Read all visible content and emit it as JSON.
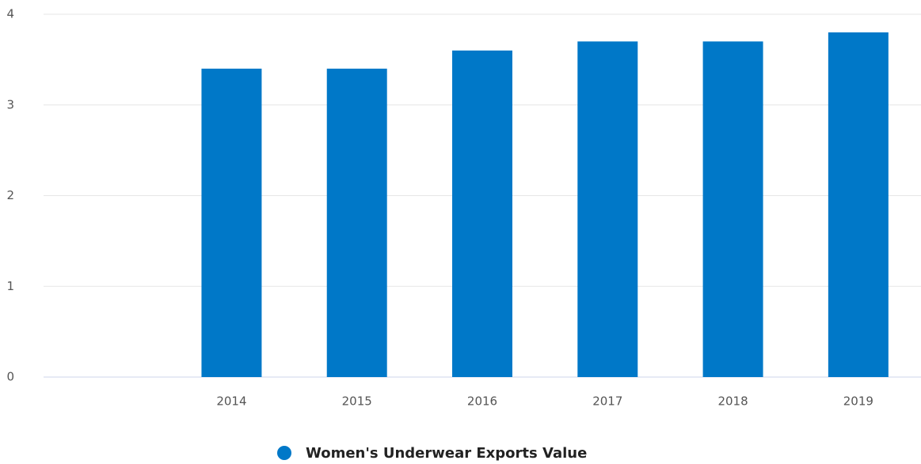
{
  "chart_data": {
    "type": "bar",
    "categories": [
      null,
      "2014",
      "2015",
      "2016",
      "2017",
      "2018",
      "2019"
    ],
    "series": [
      {
        "name": "Women's Underwear Exports Value",
        "color": "#0078c8",
        "values": [
          null,
          3.4,
          3.4,
          3.6,
          3.7,
          3.7,
          3.8
        ]
      }
    ],
    "ylim": [
      0,
      4
    ],
    "yticks": [
      0,
      1,
      2,
      3,
      4
    ],
    "grid": true,
    "legend": "bottom"
  }
}
